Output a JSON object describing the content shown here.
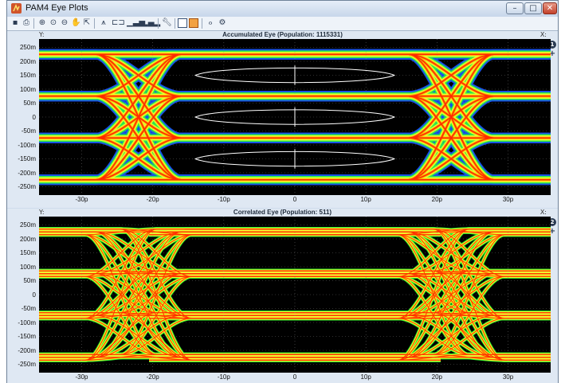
{
  "window": {
    "title": "PAM4 Eye Plots",
    "minimize": "–",
    "maximize": "□",
    "close": "✕"
  },
  "toolbar": {
    "icons": [
      "save-icon",
      "print-icon",
      "zoom-in-icon",
      "zoom-region-icon",
      "zoom-out-icon",
      "pan-icon",
      "fit-icon",
      "eye-cross-icon",
      "pattern-icon",
      "bar-icon",
      "bar2-icon",
      "wrench-icon",
      "single-view-icon",
      "split-view-icon",
      "trigger-icon",
      "trigger-settings-icon"
    ]
  },
  "panels": [
    {
      "title": "Accumulated Eye    (Population: 1115331)",
      "y_axis_label": "Y:",
      "x_axis_label": "X:",
      "badge": "1",
      "plus": "+",
      "y_ticks": [
        "250m",
        "200m",
        "150m",
        "100m",
        "50m",
        "0",
        "-50m",
        "-100m",
        "-150m",
        "-200m",
        "-250m"
      ],
      "x_ticks": [
        "-30p",
        "-20p",
        "-10p",
        "0",
        "10p",
        "20p",
        "30p"
      ]
    },
    {
      "title": "Correlated Eye    (Population: 511)",
      "y_axis_label": "Y:",
      "x_axis_label": "X:",
      "badge": "2",
      "plus": "+",
      "y_ticks": [
        "250m",
        "200m",
        "150m",
        "100m",
        "50m",
        "0",
        "-50m",
        "-100m",
        "-150m",
        "-200m",
        "-250m"
      ],
      "x_ticks": [
        "-30p",
        "-20p",
        "-10p",
        "0",
        "10p",
        "20p",
        "30p"
      ]
    }
  ],
  "colors": {
    "plot_bg": "#000000",
    "hot": "#ff2a00",
    "warm": "#ffae00",
    "mid": "#ffff30",
    "cool": "#32ff32",
    "cold": "#1b5cff",
    "contour": "#ffffff"
  }
}
